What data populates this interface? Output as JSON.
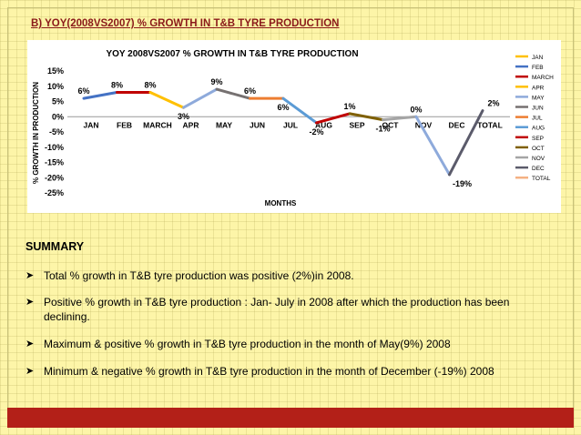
{
  "heading": "B) YOY(2008VS2007) % GROWTH IN T&B TYRE PRODUCTION",
  "chart_data": {
    "type": "line",
    "title": "YOY 2008VS2007 % GROWTH IN T&B TYRE PRODUCTION",
    "xlabel": "MONTHS",
    "ylabel": "% GROWTH IN PRODUCTION",
    "categories": [
      "JAN",
      "FEB",
      "MARCH",
      "APR",
      "MAY",
      "JUN",
      "JUL",
      "AUG",
      "SEP",
      "OCT",
      "NOV",
      "DEC",
      "TOTAL"
    ],
    "values": [
      6,
      8,
      8,
      3,
      9,
      6,
      6,
      -2,
      1,
      -1,
      0,
      -19,
      2
    ],
    "data_labels": [
      "6%",
      "8%",
      "8%",
      "3%",
      "9%",
      "6%",
      "6%",
      "-2%",
      "1%",
      "-1%",
      "0%",
      "-19%",
      "2%"
    ],
    "ylim": [
      -25,
      15
    ],
    "yticks": [
      15,
      10,
      5,
      0,
      -5,
      -10,
      -15,
      -20,
      -25
    ],
    "ytick_labels": [
      "15%",
      "10%",
      "5%",
      "0%",
      "-5%",
      "-10%",
      "-15%",
      "-20%",
      "-25%"
    ],
    "legend_position": "right",
    "legend": [
      "JAN",
      "FEB",
      "MARCH",
      "APR",
      "MAY",
      "JUN",
      "JUL",
      "AUG",
      "SEP",
      "OCT",
      "NOV",
      "DEC",
      "TOTAL"
    ],
    "segment_colors": [
      "#4472c4",
      "#c00000",
      "#ffc000",
      "#8eaadb",
      "#767171",
      "#ed7d31",
      "#5b9bd5",
      "#c00000",
      "#7f6000",
      "#a5a5a5",
      "#8eaadb",
      "#5b5b6b",
      "#f4b183"
    ],
    "legend_colors": [
      "#ffc000",
      "#4472c4",
      "#c00000",
      "#ffc000",
      "#8eaadb",
      "#767171",
      "#ed7d31",
      "#5b9bd5",
      "#c00000",
      "#7f6000",
      "#a5a5a5",
      "#5b5b6b",
      "#f4b183"
    ],
    "grid": false
  },
  "summary": {
    "title": "SUMMARY",
    "bullets": [
      "Total % growth in T&B tyre production was positive (2%)in 2008.",
      "Positive % growth in T&B tyre production : Jan- July in 2008 after which the production has been declining.",
      "Maximum & positive % growth in T&B tyre production  in the month of  May(9%) 2008",
      "Minimum & negative % growth  in  T&B tyre production in the month of December (-19%) 2008"
    ]
  },
  "colors": {
    "background": "#fdf5a8",
    "footer_bar": "#b32018",
    "heading_text": "#8b1a1a"
  }
}
